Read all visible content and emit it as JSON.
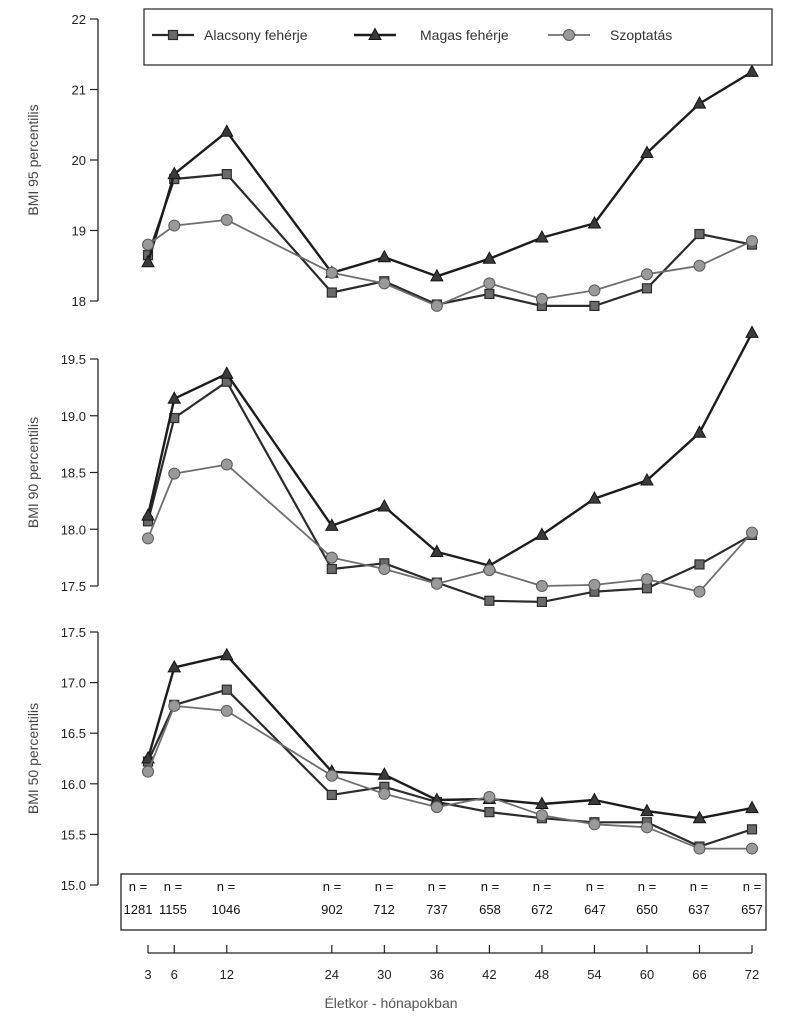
{
  "chart_data": {
    "type": "line",
    "x": [
      3,
      6,
      12,
      24,
      30,
      36,
      42,
      48,
      54,
      60,
      66,
      72
    ],
    "xlabel": "Életkor - hónapokban",
    "x_tick_labels": [
      "3",
      "6",
      "12",
      "24",
      "30",
      "36",
      "42",
      "48",
      "54",
      "60",
      "66",
      "72"
    ],
    "legend": {
      "placement": "top",
      "entries": [
        {
          "name": "Alacsony fehérje",
          "marker": "square"
        },
        {
          "name": "Magas fehérje",
          "marker": "triangle"
        },
        {
          "name": "Szoptatás",
          "marker": "circle"
        }
      ]
    },
    "panels": [
      {
        "ylabel": "BMI 95 percentilis",
        "ylim": [
          18,
          22
        ],
        "yticks": [
          "18",
          "19",
          "20",
          "21",
          "22"
        ],
        "series": [
          {
            "name": "Alacsony fehérje",
            "values": [
              18.65,
              19.73,
              19.8,
              18.12,
              18.28,
              17.95,
              18.1,
              17.93,
              17.93,
              18.18,
              18.95,
              18.8
            ]
          },
          {
            "name": "Magas fehérje",
            "values": [
              18.55,
              19.8,
              20.4,
              18.4,
              18.62,
              18.35,
              18.6,
              18.9,
              19.1,
              20.1,
              20.8,
              21.25
            ]
          },
          {
            "name": "Szoptatás",
            "values": [
              18.8,
              19.07,
              19.15,
              18.4,
              18.25,
              17.93,
              18.25,
              18.03,
              18.15,
              18.38,
              18.5,
              18.85
            ]
          }
        ]
      },
      {
        "ylabel": "BMI 90 percentilis",
        "ylim": [
          17.5,
          19.5
        ],
        "yticks": [
          "17.5",
          "18.0",
          "18.5",
          "19.0",
          "19.5"
        ],
        "series": [
          {
            "name": "Alacsony fehérje",
            "values": [
              18.07,
              18.98,
              19.3,
              17.65,
              17.7,
              17.53,
              17.37,
              17.36,
              17.45,
              17.48,
              17.69,
              17.95
            ]
          },
          {
            "name": "Magas fehérje",
            "values": [
              18.12,
              19.15,
              19.37,
              18.03,
              18.2,
              17.8,
              17.68,
              17.95,
              18.27,
              18.43,
              18.85,
              19.73
            ]
          },
          {
            "name": "Szoptatás",
            "values": [
              17.92,
              18.49,
              18.57,
              17.75,
              17.65,
              17.52,
              17.64,
              17.5,
              17.51,
              17.56,
              17.45,
              17.97
            ]
          }
        ]
      },
      {
        "ylabel": "BMI 50 percentilis",
        "ylim": [
          15.0,
          17.5
        ],
        "yticks": [
          "15.0",
          "15.5",
          "16.0",
          "16.5",
          "17.0",
          "17.5"
        ],
        "series": [
          {
            "name": "Alacsony fehérje",
            "values": [
              16.22,
              16.78,
              16.93,
              15.89,
              15.97,
              15.82,
              15.72,
              15.66,
              15.62,
              15.62,
              15.38,
              15.55
            ]
          },
          {
            "name": "Magas fehérje",
            "values": [
              16.25,
              17.15,
              17.27,
              16.12,
              16.09,
              15.84,
              15.85,
              15.8,
              15.84,
              15.73,
              15.66,
              15.76
            ]
          },
          {
            "name": "Szoptatás",
            "values": [
              16.12,
              16.77,
              16.72,
              16.08,
              15.9,
              15.77,
              15.87,
              15.69,
              15.6,
              15.57,
              15.36,
              15.36
            ]
          }
        ]
      }
    ],
    "sample_sizes": {
      "label": "n =",
      "values": [
        "1281",
        "1155",
        "1046",
        "902",
        "712",
        "737",
        "658",
        "672",
        "647",
        "650",
        "637",
        "657"
      ]
    },
    "colors": {
      "Alacsony fehérje": "#2b2b2b",
      "Magas fehérje": "#1c1c1c",
      "Szoptatás": "#6e6e6e",
      "Szoptatás_marker": "#9a9a9a",
      "axis": "#222222"
    }
  }
}
